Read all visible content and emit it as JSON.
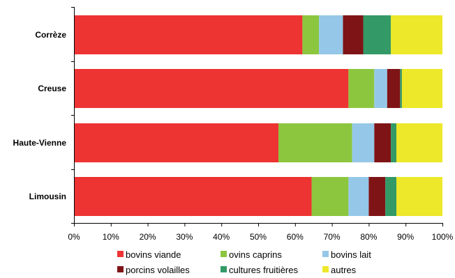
{
  "chart_data": {
    "type": "bar",
    "orientation": "horizontal",
    "stacked": true,
    "categories": [
      "Corrèze",
      "Creuse",
      "Haute-Vienne",
      "Limousin"
    ],
    "series": [
      {
        "name": "bovins viande",
        "color": "#ee3333",
        "values": [
          62,
          74.5,
          55.5,
          64.5
        ]
      },
      {
        "name": "ovins caprins",
        "color": "#8cc63f",
        "values": [
          4.5,
          7,
          20,
          10
        ]
      },
      {
        "name": "bovins lait",
        "color": "#95c8e8",
        "values": [
          6.5,
          3.5,
          6,
          5.5
        ]
      },
      {
        "name": "porcins volailles",
        "color": "#7f1416",
        "values": [
          5.5,
          3.5,
          4.5,
          4.5
        ]
      },
      {
        "name": "cultures fruitières",
        "color": "#339966",
        "values": [
          7.5,
          0.5,
          1.5,
          3
        ]
      },
      {
        "name": "autres",
        "color": "#ede829",
        "values": [
          14,
          11,
          12.5,
          12.5
        ]
      }
    ],
    "xlim": [
      0,
      100
    ],
    "xticks": [
      "0%",
      "10%",
      "20%",
      "30%",
      "40%",
      "50%",
      "60%",
      "70%",
      "80%",
      "90%",
      "100%"
    ],
    "grid": false,
    "legend_position": "bottom"
  }
}
